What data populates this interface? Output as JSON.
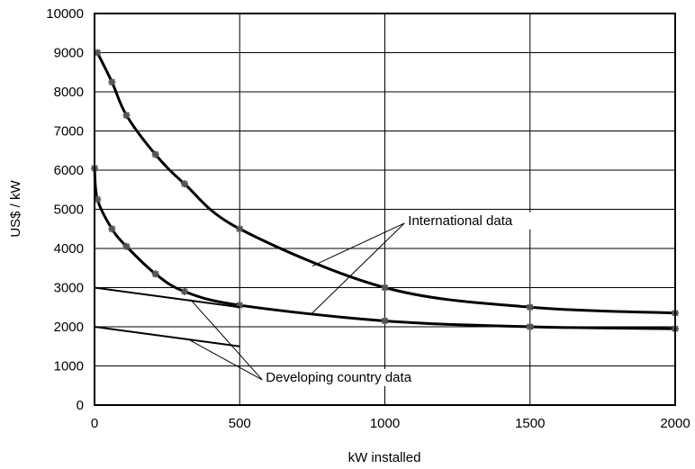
{
  "chart_data": {
    "type": "line",
    "title": "",
    "xlabel": "kW installed",
    "ylabel": "US$ / kW",
    "xlim": [
      0,
      2000
    ],
    "ylim": [
      0,
      10000
    ],
    "x_ticks": [
      0,
      500,
      1000,
      1500,
      2000
    ],
    "y_ticks": [
      0,
      1000,
      2000,
      3000,
      4000,
      5000,
      6000,
      7000,
      8000,
      9000,
      10000
    ],
    "grid": true,
    "legend": "none",
    "colors": {
      "line": "#000000",
      "marker": "#555555",
      "grid": "#000000"
    },
    "series": [
      {
        "group": "International data",
        "x": [
          10,
          60,
          110,
          210,
          310,
          500,
          1000,
          1500,
          2000
        ],
        "y": [
          9000,
          8250,
          7400,
          6400,
          5650,
          4500,
          3000,
          2500,
          2350
        ],
        "markers": true
      },
      {
        "group": "International data",
        "x": [
          0,
          10,
          60,
          110,
          210,
          310,
          500,
          1000,
          1500,
          2000
        ],
        "y": [
          6050,
          5250,
          4500,
          4050,
          3350,
          2900,
          2550,
          2150,
          2000,
          1950
        ],
        "markers": true
      },
      {
        "group": "Developing country data",
        "x": [
          0,
          500
        ],
        "y": [
          3000,
          2500
        ],
        "markers": false
      },
      {
        "group": "Developing country data",
        "x": [
          0,
          500
        ],
        "y": [
          2000,
          1500
        ],
        "markers": false
      }
    ],
    "annotations": [
      {
        "text": "International data",
        "label_x": 1080,
        "label_y": 4600,
        "targets": [
          [
            750,
            3550
          ],
          [
            750,
            2350
          ]
        ]
      },
      {
        "text": "Developing country data",
        "label_x": 590,
        "label_y": 600,
        "targets": [
          [
            330,
            2700
          ],
          [
            330,
            1650
          ]
        ]
      }
    ]
  }
}
